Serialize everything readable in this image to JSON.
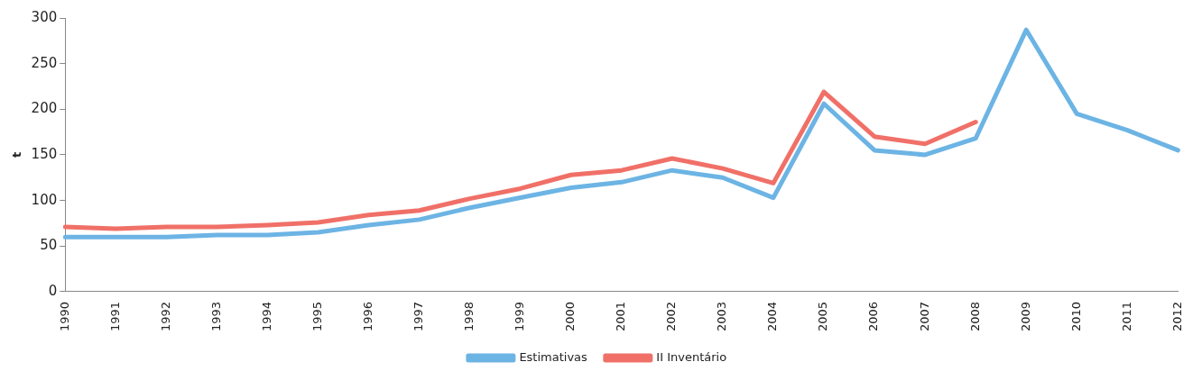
{
  "chart_data": {
    "type": "line",
    "ylabel": "t",
    "categories": [
      "1990",
      "1991",
      "1992",
      "1993",
      "1994",
      "1995",
      "1996",
      "1997",
      "1998",
      "1999",
      "2000",
      "2001",
      "2002",
      "2003",
      "2004",
      "2005",
      "2006",
      "2007",
      "2008",
      "2009",
      "2010",
      "2011",
      "2012"
    ],
    "series": [
      {
        "name": "Estimativas",
        "color": "#6cb4e4",
        "values": [
          60,
          60,
          60,
          62,
          62,
          65,
          73,
          79,
          92,
          103,
          114,
          120,
          133,
          125,
          103,
          206,
          155,
          150,
          168,
          287,
          195,
          177,
          155
        ]
      },
      {
        "name": "II Inventário",
        "color": "#f07068",
        "values": [
          71,
          69,
          71,
          71,
          73,
          76,
          84,
          89,
          102,
          113,
          128,
          133,
          146,
          135,
          119,
          219,
          170,
          162,
          186,
          null,
          null,
          null,
          null
        ]
      }
    ],
    "ylim": [
      0,
      300
    ],
    "yticks": [
      0,
      50,
      100,
      150,
      200,
      250,
      300
    ],
    "grid": false,
    "legend": "bottom",
    "marker": "none",
    "line_style": "solid"
  }
}
